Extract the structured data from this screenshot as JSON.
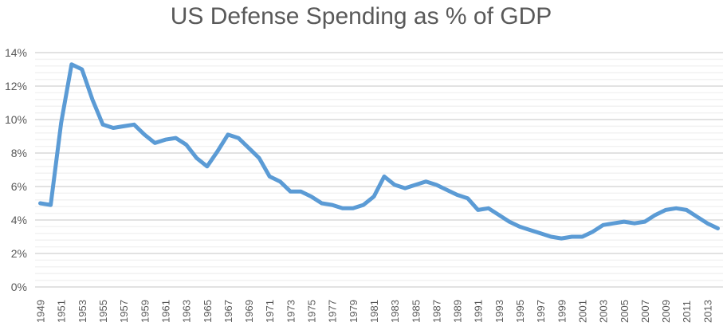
{
  "chart_data": {
    "type": "line",
    "title": "US Defense Spending as % of GDP",
    "xlabel": "",
    "ylabel": "",
    "ylim": [
      0,
      14
    ],
    "y_ticks": [
      "0%",
      "2%",
      "4%",
      "6%",
      "8%",
      "10%",
      "12%",
      "14%"
    ],
    "grid": true,
    "legend": "none",
    "line_color": "#5B9BD5",
    "x": [
      1949,
      1950,
      1951,
      1952,
      1953,
      1954,
      1955,
      1956,
      1957,
      1958,
      1959,
      1960,
      1961,
      1962,
      1963,
      1964,
      1965,
      1966,
      1967,
      1968,
      1969,
      1970,
      1971,
      1972,
      1973,
      1974,
      1975,
      1976,
      1977,
      1978,
      1979,
      1980,
      1981,
      1982,
      1983,
      1984,
      1985,
      1986,
      1987,
      1988,
      1989,
      1990,
      1991,
      1992,
      1993,
      1994,
      1995,
      1996,
      1997,
      1998,
      1999,
      2000,
      2001,
      2002,
      2003,
      2004,
      2005,
      2006,
      2007,
      2008,
      2009,
      2010,
      2011,
      2012,
      2013,
      2014
    ],
    "values": [
      5.0,
      4.9,
      9.8,
      13.3,
      13.0,
      11.2,
      9.7,
      9.5,
      9.6,
      9.7,
      9.1,
      8.6,
      8.8,
      8.9,
      8.5,
      7.7,
      7.2,
      8.1,
      9.1,
      8.9,
      8.3,
      7.7,
      6.6,
      6.3,
      5.7,
      5.7,
      5.4,
      5.0,
      4.9,
      4.7,
      4.7,
      4.9,
      5.4,
      6.6,
      6.1,
      5.9,
      6.1,
      6.3,
      6.1,
      5.8,
      5.5,
      5.3,
      4.6,
      4.7,
      4.3,
      3.9,
      3.6,
      3.4,
      3.2,
      3.0,
      2.9,
      3.0,
      3.0,
      3.3,
      3.7,
      3.8,
      3.9,
      3.8,
      3.9,
      4.3,
      4.6,
      4.7,
      4.6,
      4.2,
      3.8,
      3.5
    ]
  }
}
